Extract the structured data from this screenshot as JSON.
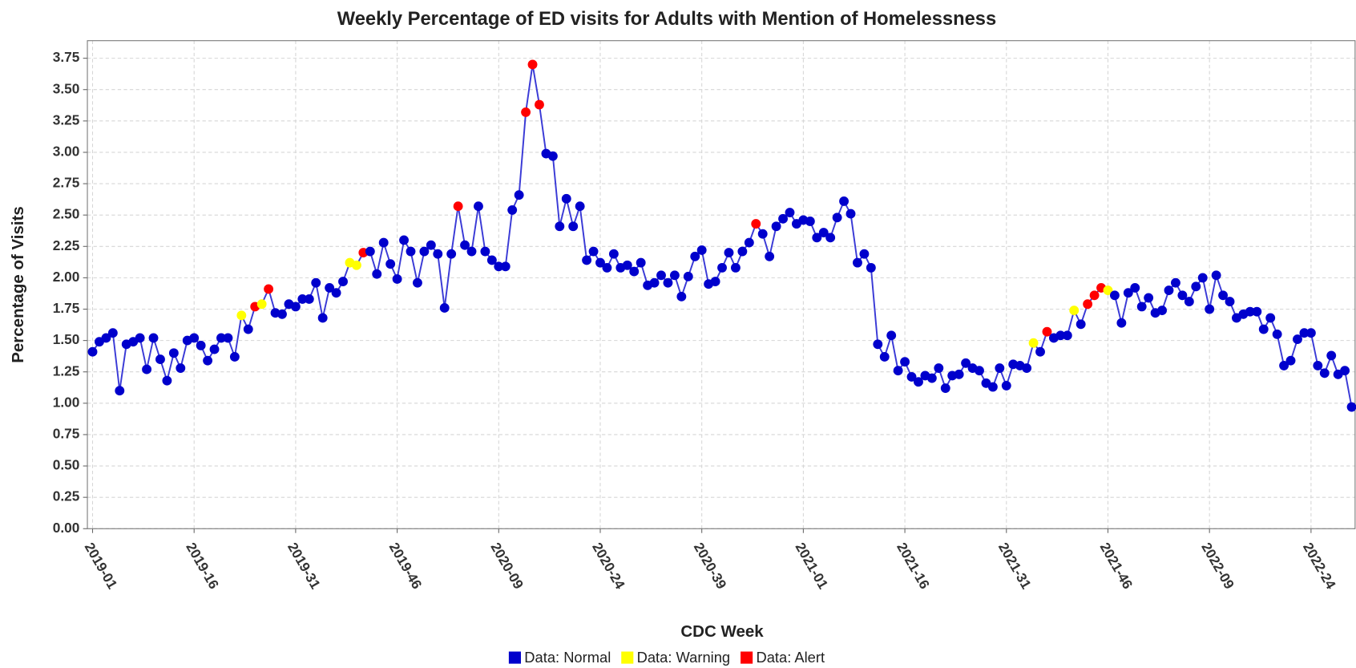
{
  "chart_data": {
    "type": "line",
    "title": "Weekly Percentage of ED visits for Adults with Mention of Homelessness",
    "x_label": "CDC Week",
    "y_label": "Percentage of Visits",
    "categories": [
      "2019-01",
      null,
      null,
      null,
      null,
      null,
      null,
      null,
      null,
      null,
      null,
      null,
      null,
      null,
      null,
      "2019-16",
      null,
      null,
      null,
      null,
      null,
      null,
      null,
      null,
      null,
      null,
      null,
      null,
      null,
      null,
      "2019-31",
      null,
      null,
      null,
      null,
      null,
      null,
      null,
      null,
      null,
      null,
      null,
      null,
      null,
      null,
      "2019-46",
      null,
      null,
      null,
      null,
      null,
      null,
      null,
      null,
      null,
      null,
      null,
      null,
      null,
      null,
      "2020-09",
      null,
      null,
      null,
      null,
      null,
      null,
      null,
      null,
      null,
      null,
      null,
      null,
      null,
      null,
      "2020-24",
      null,
      null,
      null,
      null,
      null,
      null,
      null,
      null,
      null,
      null,
      null,
      null,
      null,
      null,
      "2020-39",
      null,
      null,
      null,
      null,
      null,
      null,
      null,
      null,
      null,
      null,
      null,
      null,
      null,
      null,
      "2021-01",
      null,
      null,
      null,
      null,
      null,
      null,
      null,
      null,
      null,
      null,
      null,
      null,
      null,
      null,
      "2021-16",
      null,
      null,
      null,
      null,
      null,
      null,
      null,
      null,
      null,
      null,
      null,
      null,
      null,
      null,
      "2021-31",
      null,
      null,
      null,
      null,
      null,
      null,
      null,
      null,
      null,
      null,
      null,
      null,
      null,
      null,
      "2021-46",
      null,
      null,
      null,
      null,
      null,
      null,
      null,
      null,
      null,
      null,
      null,
      null,
      null,
      null,
      "2022-09",
      null,
      null,
      null,
      null,
      null,
      null,
      null,
      null,
      null,
      null,
      null,
      null,
      null,
      null,
      "2022-24",
      null,
      null,
      null,
      null,
      null,
      null
    ],
    "values": [
      1.41,
      1.49,
      1.52,
      1.56,
      1.1,
      1.47,
      1.49,
      1.52,
      1.27,
      1.52,
      1.35,
      1.18,
      1.4,
      1.28,
      1.5,
      1.52,
      1.46,
      1.34,
      1.43,
      1.52,
      1.52,
      1.37,
      1.7,
      1.59,
      1.77,
      1.79,
      1.91,
      1.72,
      1.71,
      1.79,
      1.77,
      1.83,
      1.83,
      1.96,
      1.68,
      1.92,
      1.88,
      1.97,
      2.12,
      2.1,
      2.2,
      2.21,
      2.03,
      2.28,
      2.11,
      1.99,
      2.3,
      2.21,
      1.96,
      2.21,
      2.26,
      2.19,
      1.76,
      2.19,
      2.57,
      2.26,
      2.21,
      2.57,
      2.21,
      2.14,
      2.09,
      2.09,
      2.54,
      2.66,
      3.32,
      3.7,
      3.38,
      2.99,
      2.97,
      2.41,
      2.63,
      2.41,
      2.57,
      2.14,
      2.21,
      2.12,
      2.08,
      2.19,
      2.08,
      2.1,
      2.05,
      2.12,
      1.94,
      1.96,
      2.02,
      1.96,
      2.02,
      1.85,
      2.01,
      2.17,
      2.22,
      1.95,
      1.97,
      2.08,
      2.2,
      2.08,
      2.21,
      2.28,
      2.43,
      2.35,
      2.17,
      2.41,
      2.47,
      2.52,
      2.43,
      2.46,
      2.45,
      2.32,
      2.36,
      2.32,
      2.48,
      2.61,
      2.51,
      2.12,
      2.19,
      2.08,
      1.47,
      1.37,
      1.54,
      1.26,
      1.33,
      1.21,
      1.17,
      1.22,
      1.2,
      1.28,
      1.12,
      1.22,
      1.23,
      1.32,
      1.28,
      1.26,
      1.16,
      1.13,
      1.28,
      1.14,
      1.31,
      1.3,
      1.28,
      1.48,
      1.41,
      1.57,
      1.52,
      1.54,
      1.54,
      1.74,
      1.63,
      1.79,
      1.86,
      1.92,
      1.9,
      1.86,
      1.64,
      1.88,
      1.92,
      1.77,
      1.84,
      1.72,
      1.74,
      1.9,
      1.96,
      1.86,
      1.81,
      1.93,
      2.0,
      1.75,
      2.02,
      1.86,
      1.81,
      1.68,
      1.71,
      1.73,
      1.73,
      1.59,
      1.68,
      1.55,
      1.3,
      1.34,
      1.51,
      1.56,
      1.56,
      1.3,
      1.24,
      1.38,
      1.23,
      1.26,
      0.97
    ],
    "marker_colors": [
      "#0000cc",
      "#0000cc",
      "#0000cc",
      "#0000cc",
      "#0000cc",
      "#0000cc",
      "#0000cc",
      "#0000cc",
      "#0000cc",
      "#0000cc",
      "#0000cc",
      "#0000cc",
      "#0000cc",
      "#0000cc",
      "#0000cc",
      "#0000cc",
      "#0000cc",
      "#0000cc",
      "#0000cc",
      "#0000cc",
      "#0000cc",
      "#0000cc",
      "#ffff00",
      "#0000cc",
      "#ff0000",
      "#ffff00",
      "#ff0000",
      "#0000cc",
      "#0000cc",
      "#0000cc",
      "#0000cc",
      "#0000cc",
      "#0000cc",
      "#0000cc",
      "#0000cc",
      "#0000cc",
      "#0000cc",
      "#0000cc",
      "#ffff00",
      "#ffff00",
      "#ff0000",
      "#0000cc",
      "#0000cc",
      "#0000cc",
      "#0000cc",
      "#0000cc",
      "#0000cc",
      "#0000cc",
      "#0000cc",
      "#0000cc",
      "#0000cc",
      "#0000cc",
      "#0000cc",
      "#0000cc",
      "#ff0000",
      "#0000cc",
      "#0000cc",
      "#0000cc",
      "#0000cc",
      "#0000cc",
      "#0000cc",
      "#0000cc",
      "#0000cc",
      "#0000cc",
      "#ff0000",
      "#ff0000",
      "#ff0000",
      "#0000cc",
      "#0000cc",
      "#0000cc",
      "#0000cc",
      "#0000cc",
      "#0000cc",
      "#0000cc",
      "#0000cc",
      "#0000cc",
      "#0000cc",
      "#0000cc",
      "#0000cc",
      "#0000cc",
      "#0000cc",
      "#0000cc",
      "#0000cc",
      "#0000cc",
      "#0000cc",
      "#0000cc",
      "#0000cc",
      "#0000cc",
      "#0000cc",
      "#0000cc",
      "#0000cc",
      "#0000cc",
      "#0000cc",
      "#0000cc",
      "#0000cc",
      "#0000cc",
      "#0000cc",
      "#0000cc",
      "#ff0000",
      "#0000cc",
      "#0000cc",
      "#0000cc",
      "#0000cc",
      "#0000cc",
      "#0000cc",
      "#0000cc",
      "#0000cc",
      "#0000cc",
      "#0000cc",
      "#0000cc",
      "#0000cc",
      "#0000cc",
      "#0000cc",
      "#0000cc",
      "#0000cc",
      "#0000cc",
      "#0000cc",
      "#0000cc",
      "#0000cc",
      "#0000cc",
      "#0000cc",
      "#0000cc",
      "#0000cc",
      "#0000cc",
      "#0000cc",
      "#0000cc",
      "#0000cc",
      "#0000cc",
      "#0000cc",
      "#0000cc",
      "#0000cc",
      "#0000cc",
      "#0000cc",
      "#0000cc",
      "#0000cc",
      "#0000cc",
      "#0000cc",
      "#0000cc",
      "#0000cc",
      "#ffff00",
      "#0000cc",
      "#ff0000",
      "#0000cc",
      "#0000cc",
      "#0000cc",
      "#ffff00",
      "#0000cc",
      "#ff0000",
      "#ff0000",
      "#ff0000",
      "#ffff00",
      "#0000cc",
      "#0000cc",
      "#0000cc",
      "#0000cc",
      "#0000cc",
      "#0000cc",
      "#0000cc",
      "#0000cc",
      "#0000cc",
      "#0000cc",
      "#0000cc",
      "#0000cc",
      "#0000cc",
      "#0000cc",
      "#0000cc",
      "#0000cc",
      "#0000cc",
      "#0000cc",
      "#0000cc",
      "#0000cc",
      "#0000cc",
      "#0000cc",
      "#0000cc",
      "#0000cc",
      "#0000cc",
      "#0000cc",
      "#0000cc",
      "#0000cc",
      "#0000cc",
      "#0000cc",
      "#0000cc",
      "#0000cc",
      "#0000cc",
      "#0000cc",
      "#0000cc",
      "#0000cc"
    ],
    "line_color": "#3a3ad6",
    "ylim": [
      0,
      3.89
    ],
    "yticks": [
      {
        "value": 0,
        "label": "0.00"
      },
      {
        "value": 0.25,
        "label": "0.25"
      },
      {
        "value": 0.5,
        "label": "0.50"
      },
      {
        "value": 0.75,
        "label": "0.75"
      },
      {
        "value": 1,
        "label": "1.00"
      },
      {
        "value": 1.25,
        "label": "1.25"
      },
      {
        "value": 1.5,
        "label": "1.50"
      },
      {
        "value": 1.75,
        "label": "1.75"
      },
      {
        "value": 2,
        "label": "2.00"
      },
      {
        "value": 2.25,
        "label": "2.25"
      },
      {
        "value": 2.5,
        "label": "2.50"
      },
      {
        "value": 2.75,
        "label": "2.75"
      },
      {
        "value": 3,
        "label": "3.00"
      },
      {
        "value": 3.25,
        "label": "3.25"
      },
      {
        "value": 3.5,
        "label": "3.50"
      },
      {
        "value": 3.75,
        "label": "3.75"
      }
    ],
    "grid": true,
    "legend": [
      {
        "label": "Data: Normal",
        "color": "#0000cc"
      },
      {
        "label": "Data: Warning",
        "color": "#ffff00"
      },
      {
        "label": "Data: Alert",
        "color": "#ff0000"
      }
    ]
  }
}
